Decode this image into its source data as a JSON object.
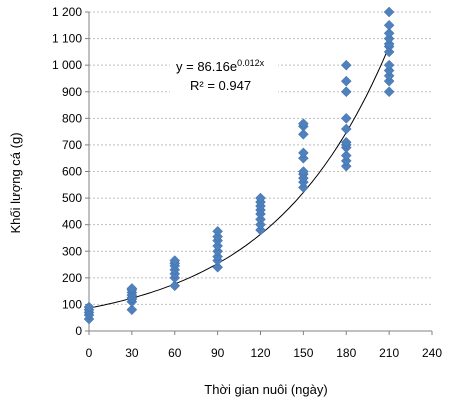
{
  "chart_data": {
    "type": "scatter",
    "xlabel": "Thời gian nuôi (ngày)",
    "ylabel": "Khối lượng cá (g)",
    "xlim": [
      0,
      240
    ],
    "ylim": [
      0,
      1200
    ],
    "x_ticks": [
      0,
      30,
      60,
      90,
      120,
      150,
      180,
      210,
      240
    ],
    "y_ticks": [
      0,
      100,
      200,
      300,
      400,
      500,
      600,
      700,
      800,
      900,
      1000,
      1100,
      1200
    ],
    "x_tick_labels": [
      "0",
      "30",
      "60",
      "90",
      "120",
      "150",
      "180",
      "210",
      "240"
    ],
    "y_tick_labels": [
      "0",
      "100",
      "200",
      "300",
      "400",
      "500",
      "600",
      "700",
      "800",
      "900",
      "1 000",
      "1 100",
      "1 200"
    ],
    "grid": "horizontal",
    "marker_color": "#4f81bd",
    "trendline": {
      "type": "exponential",
      "a": 86.16,
      "b": 0.012,
      "equation_prefix": "y = 86.16e",
      "equation_exponent": "0.012x",
      "r_squared_text": "R² = 0.947"
    },
    "series": [
      {
        "points": [
          [
            0,
            45
          ],
          [
            0,
            60
          ],
          [
            0,
            70
          ],
          [
            0,
            80
          ],
          [
            0,
            90
          ],
          [
            30,
            80
          ],
          [
            30,
            110
          ],
          [
            30,
            120
          ],
          [
            30,
            125
          ],
          [
            30,
            135
          ],
          [
            30,
            145
          ],
          [
            30,
            155
          ],
          [
            30,
            160
          ],
          [
            60,
            170
          ],
          [
            60,
            200
          ],
          [
            60,
            215
          ],
          [
            60,
            230
          ],
          [
            60,
            245
          ],
          [
            60,
            255
          ],
          [
            60,
            265
          ],
          [
            90,
            240
          ],
          [
            90,
            265
          ],
          [
            90,
            280
          ],
          [
            90,
            300
          ],
          [
            90,
            320
          ],
          [
            90,
            340
          ],
          [
            90,
            355
          ],
          [
            90,
            375
          ],
          [
            120,
            380
          ],
          [
            120,
            400
          ],
          [
            120,
            420
          ],
          [
            120,
            440
          ],
          [
            120,
            455
          ],
          [
            120,
            470
          ],
          [
            120,
            485
          ],
          [
            120,
            500
          ],
          [
            150,
            540
          ],
          [
            150,
            560
          ],
          [
            150,
            575
          ],
          [
            150,
            590
          ],
          [
            150,
            600
          ],
          [
            150,
            650
          ],
          [
            150,
            670
          ],
          [
            150,
            740
          ],
          [
            150,
            770
          ],
          [
            150,
            780
          ],
          [
            180,
            620
          ],
          [
            180,
            640
          ],
          [
            180,
            660
          ],
          [
            180,
            690
          ],
          [
            180,
            700
          ],
          [
            180,
            710
          ],
          [
            180,
            760
          ],
          [
            180,
            800
          ],
          [
            180,
            900
          ],
          [
            180,
            940
          ],
          [
            180,
            1000
          ],
          [
            210,
            900
          ],
          [
            210,
            940
          ],
          [
            210,
            960
          ],
          [
            210,
            980
          ],
          [
            210,
            1000
          ],
          [
            210,
            1050
          ],
          [
            210,
            1070
          ],
          [
            210,
            1080
          ],
          [
            210,
            1100
          ],
          [
            210,
            1120
          ],
          [
            210,
            1150
          ],
          [
            210,
            1200
          ]
        ]
      }
    ]
  }
}
